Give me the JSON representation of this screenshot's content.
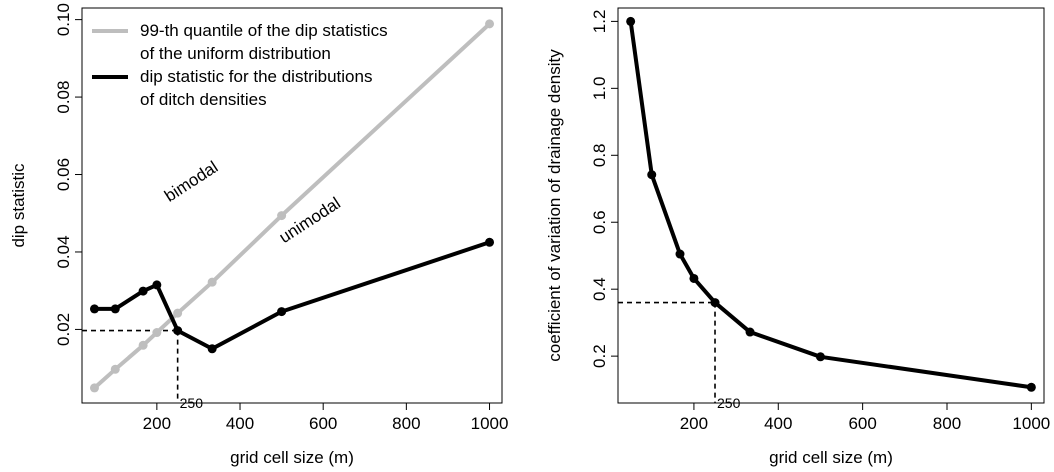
{
  "chart_data": [
    {
      "type": "line",
      "title": "",
      "xlabel": "grid cell size (m)",
      "ylabel": "dip statistic",
      "xlim": [
        20,
        1030
      ],
      "ylim": [
        0.001,
        0.103
      ],
      "xticks": [
        200,
        400,
        600,
        800,
        1000
      ],
      "yticks": [
        0.02,
        0.04,
        0.06,
        0.08,
        0.1
      ],
      "ytick_labels": [
        "0.02",
        "0.04",
        "0.06",
        "0.08",
        "0.10"
      ],
      "grid": false,
      "legend_position": "top-left",
      "series": [
        {
          "name": "99-th quantile of the dip statistics of the uniform distribution",
          "legend_lines": [
            "99-th quantile of the dip statistics",
            "of the uniform distribution"
          ],
          "color": "#bebebe",
          "x": [
            50,
            100,
            167,
            200,
            250,
            333,
            500,
            1000
          ],
          "y": [
            0.0049,
            0.0097,
            0.0159,
            0.0192,
            0.0242,
            0.0322,
            0.0494,
            0.0989
          ]
        },
        {
          "name": "dip statistic for the distributions of ditch densities",
          "legend_lines": [
            "dip statistic for the distributions",
            "of ditch densities"
          ],
          "color": "#000000",
          "x": [
            50,
            100,
            167,
            200,
            250,
            333,
            500,
            1000
          ],
          "y": [
            0.0253,
            0.0253,
            0.0299,
            0.0315,
            0.0197,
            0.015,
            0.0246,
            0.0425
          ]
        }
      ],
      "annotations": [
        {
          "text": "bimodal",
          "x": 290,
          "y": 0.057
        },
        {
          "text": "unimodal",
          "x": 575,
          "y": 0.047
        },
        {
          "text": "250",
          "x": 252,
          "y": 0.002
        }
      ],
      "reference_lines": {
        "x": 250,
        "y": 0.0197
      }
    },
    {
      "type": "line",
      "title": "",
      "xlabel": "grid cell size (m)",
      "ylabel": "coefficient of variation of drainage density",
      "xlim": [
        20,
        1030
      ],
      "ylim": [
        0.06,
        1.24
      ],
      "xticks": [
        200,
        400,
        600,
        800,
        1000
      ],
      "yticks": [
        0.2,
        0.4,
        0.6,
        0.8,
        1.0,
        1.2
      ],
      "ytick_labels": [
        "0.2",
        "0.4",
        "0.6",
        "0.8",
        "1.0",
        "1.2"
      ],
      "grid": false,
      "series": [
        {
          "name": "",
          "color": "#000000",
          "x": [
            50,
            100,
            167,
            200,
            250,
            333,
            500,
            1000
          ],
          "y": [
            1.2,
            0.742,
            0.505,
            0.432,
            0.36,
            0.272,
            0.198,
            0.107
          ]
        }
      ],
      "annotations": [
        {
          "text": "250",
          "x": 262,
          "y": 0.075
        }
      ],
      "reference_lines": {
        "x": 250,
        "y": 0.36
      }
    }
  ]
}
